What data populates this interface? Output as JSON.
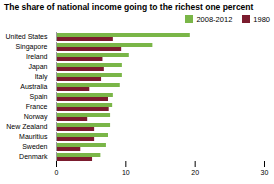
{
  "chart_data": {
    "type": "bar",
    "orientation": "horizontal",
    "title": "The share of national income going to the richest one percent",
    "categories": [
      "United States",
      "Singapore",
      "Ireland",
      "Japan",
      "Italy",
      "Australia",
      "Spain",
      "France",
      "Norway",
      "New Zealand",
      "Mauritius",
      "Sweden",
      "Denmark"
    ],
    "series": [
      {
        "name": "2008-2012",
        "color": "#7ab648",
        "values": [
          19.3,
          13.9,
          10.5,
          9.5,
          9.5,
          9.2,
          8.2,
          8.1,
          7.8,
          7.8,
          7.5,
          7.2,
          6.4
        ]
      },
      {
        "name": "1980",
        "color": "#7b1c2e",
        "values": [
          8.2,
          9.4,
          6.7,
          6.9,
          6.5,
          4.8,
          7.5,
          7.6,
          4.5,
          5.5,
          5.5,
          3.5,
          5.2
        ]
      }
    ],
    "xlim": [
      0,
      30
    ],
    "xticks": [
      0,
      10,
      20,
      30
    ],
    "grid": false,
    "legend": "right"
  }
}
